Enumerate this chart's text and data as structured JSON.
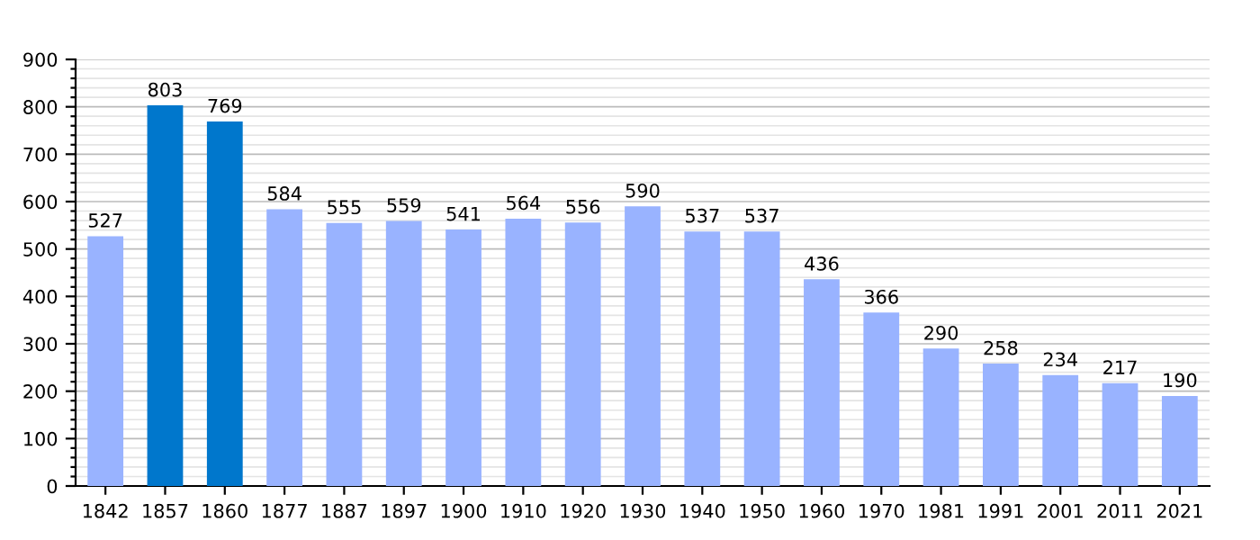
{
  "chart_data": {
    "type": "bar",
    "categories": [
      "1842",
      "1857",
      "1860",
      "1877",
      "1887",
      "1897",
      "1900",
      "1910",
      "1920",
      "1930",
      "1940",
      "1950",
      "1960",
      "1970",
      "1981",
      "1991",
      "2001",
      "2011",
      "2021"
    ],
    "values": [
      527,
      803,
      769,
      584,
      555,
      559,
      541,
      564,
      556,
      590,
      537,
      537,
      436,
      366,
      290,
      258,
      234,
      217,
      190
    ],
    "colors": [
      "#99b3ff",
      "#0077cc",
      "#0077cc",
      "#99b3ff",
      "#99b3ff",
      "#99b3ff",
      "#99b3ff",
      "#99b3ff",
      "#99b3ff",
      "#99b3ff",
      "#99b3ff",
      "#99b3ff",
      "#99b3ff",
      "#99b3ff",
      "#99b3ff",
      "#99b3ff",
      "#99b3ff",
      "#99b3ff",
      "#99b3ff"
    ],
    "data_labels": true,
    "grid": "y",
    "ylim": [
      0,
      900
    ],
    "yticks": [
      0,
      {
        "value": 20,
        "label": null
      },
      {
        "value": 40,
        "label": null
      },
      {
        "value": 60,
        "label": null
      },
      {
        "value": 80,
        "label": null
      },
      100,
      {
        "value": 120,
        "label": null
      },
      {
        "value": 140,
        "label": null
      },
      {
        "value": 160,
        "label": null
      },
      {
        "value": 180,
        "label": null
      },
      200,
      {
        "value": 220,
        "label": null
      },
      {
        "value": 240,
        "label": null
      },
      {
        "value": 260,
        "label": null
      },
      {
        "value": 280,
        "label": null
      },
      300,
      {
        "value": 320,
        "label": null
      },
      {
        "value": 340,
        "label": null
      },
      {
        "value": 360,
        "label": null
      },
      {
        "value": 380,
        "label": null
      },
      400,
      {
        "value": 420,
        "label": null
      },
      {
        "value": 440,
        "label": null
      },
      {
        "value": 460,
        "label": null
      },
      {
        "value": 480,
        "label": null
      },
      500,
      {
        "value": 520,
        "label": null
      },
      {
        "value": 540,
        "label": null
      },
      {
        "value": 560,
        "label": null
      },
      {
        "value": 580,
        "label": null
      },
      600,
      {
        "value": 620,
        "label": null
      },
      {
        "value": 640,
        "label": null
      },
      {
        "value": 660,
        "label": null
      },
      {
        "value": 680,
        "label": null
      },
      700,
      {
        "value": 720,
        "label": null
      },
      {
        "value": 740,
        "label": null
      },
      {
        "value": 760,
        "label": null
      },
      {
        "value": 780,
        "label": null
      },
      800,
      {
        "value": 820,
        "label": null
      },
      {
        "value": 840,
        "label": null
      },
      {
        "value": 860,
        "label": null
      },
      {
        "value": 880,
        "label": null
      },
      900
    ]
  }
}
